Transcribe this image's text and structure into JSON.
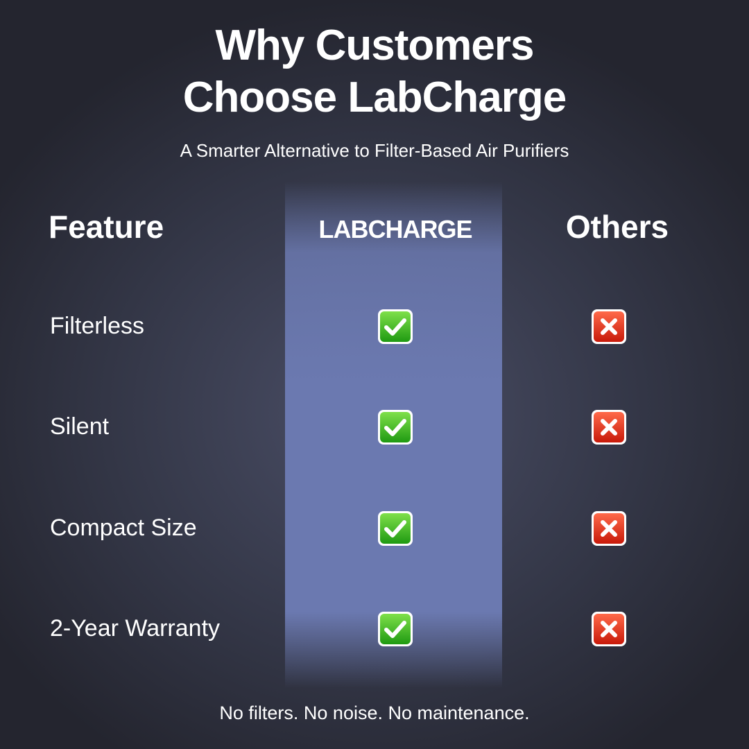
{
  "header": {
    "title_lines": [
      "Why Customers",
      "Choose LabCharge"
    ],
    "subtitle": "A Smarter Alternative to Filter-Based Air Purifiers"
  },
  "table": {
    "columns": [
      "Feature",
      "LABCHARGE",
      "Others"
    ],
    "rows": [
      {
        "feature": "Filterless",
        "labcharge": true,
        "others": false
      },
      {
        "feature": "Silent",
        "labcharge": true,
        "others": false
      },
      {
        "feature": "Compact Size",
        "labcharge": true,
        "others": false
      },
      {
        "feature": "2-Year Warranty",
        "labcharge": true,
        "others": false
      }
    ]
  },
  "footer": "No filters. No noise. No maintenance."
}
